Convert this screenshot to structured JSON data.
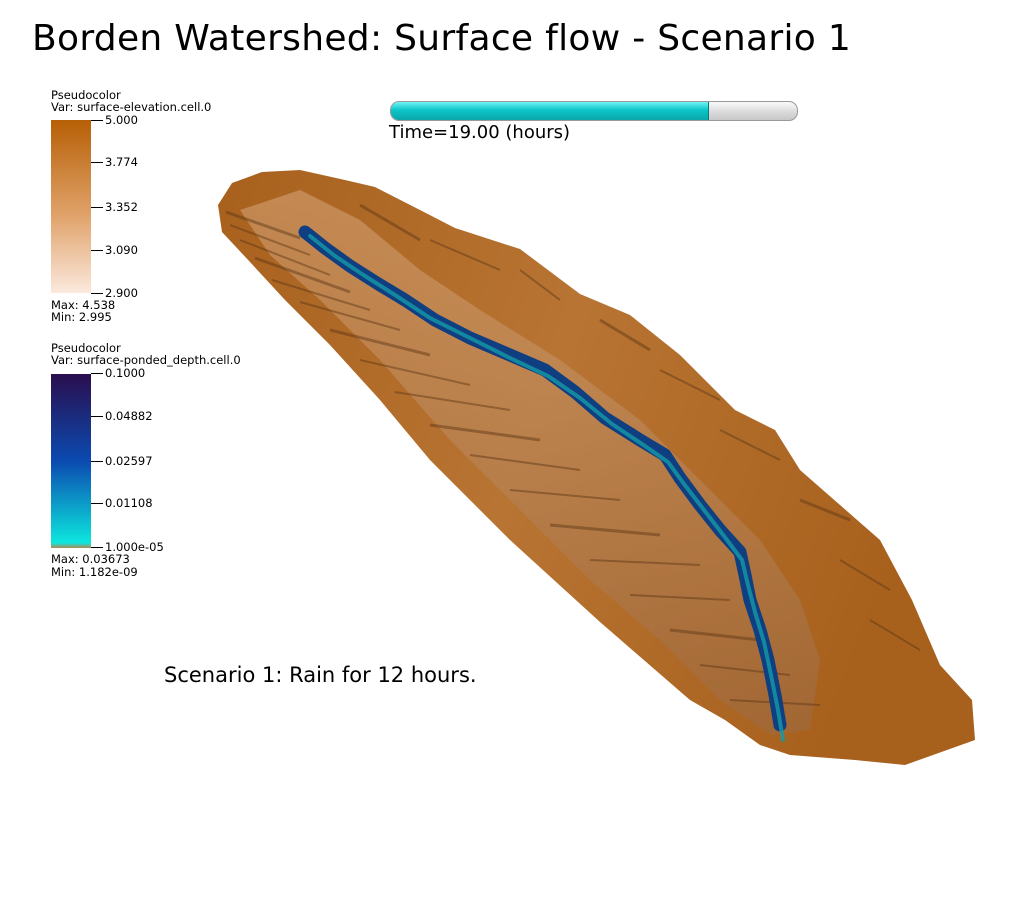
{
  "title": "Borden Watershed: Surface flow - Scenario 1",
  "time_bar": {
    "progress": 0.78,
    "label": "Time=19.00 (hours)"
  },
  "caption": "Scenario 1: Rain for 12 hours.",
  "legend_elevation": {
    "heading": "Pseudocolor",
    "var": "Var: surface-elevation.cell.0",
    "ticks": [
      "5.000",
      "3.774",
      "3.352",
      "3.090",
      "2.900"
    ],
    "max": "Max:  4.538",
    "min": "Min:  2.995",
    "colors": {
      "top": "#b65f05",
      "mid": "#e0a26a",
      "bottom": "#fbe9dd"
    }
  },
  "legend_depth": {
    "heading": "Pseudocolor",
    "var": "Var: surface-ponded_depth.cell.0",
    "ticks": [
      "0.1000",
      "0.04882",
      "0.02597",
      "0.01108",
      "1.000e-05"
    ],
    "max": "Max:  0.03673",
    "min": "Min:  1.182e-09",
    "colors": {
      "top": "#2a0e4e",
      "mid": "#0b4ab0",
      "bottom": "#0de6de"
    }
  },
  "terrain_colors": {
    "land": "#a8611d",
    "land_light": "#d9a77a",
    "land_dark": "#5a3514",
    "water": "#0f3f80",
    "water_edge": "#159aa8"
  }
}
